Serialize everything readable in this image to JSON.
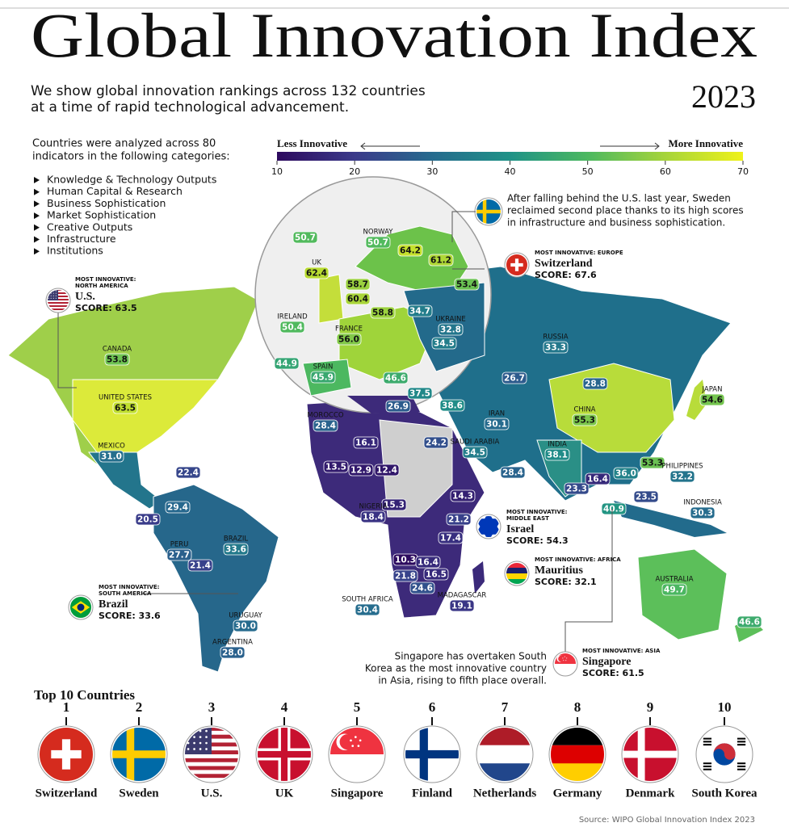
{
  "header": {
    "title": "Global Innovation Index",
    "year": "2023",
    "subtitle": [
      "We show global innovation rankings across 132 countries",
      "at a time of rapid technological advancement."
    ]
  },
  "intro": {
    "text": [
      "Countries were analyzed across 80",
      "indicators in the following categories:"
    ],
    "categories": [
      "Knowledge & Technology Outputs",
      "Human Capital & Research",
      "Business Sophistication",
      "Market Sophistication",
      "Creative Outputs",
      "Infrastructure",
      "Institutions"
    ]
  },
  "legend": {
    "low_label": "Less Innovative",
    "high_label": "More Innovative",
    "ticks": [
      10,
      20,
      30,
      40,
      50,
      60,
      70
    ],
    "colors": [
      "#2d0a5e",
      "#3b3a8a",
      "#266b8e",
      "#1f9287",
      "#4cb860",
      "#a6d43a",
      "#eff21a"
    ]
  },
  "map_labels": [
    {
      "name": "CANADA",
      "score": "53.8"
    },
    {
      "name": "UNITED STATES",
      "score": "63.5"
    },
    {
      "name": "MEXICO",
      "score": "31.0"
    },
    {
      "score": "22.4"
    },
    {
      "score": "20.5"
    },
    {
      "score": "29.4"
    },
    {
      "name": "PERU",
      "score": "27.7"
    },
    {
      "score": "21.4"
    },
    {
      "name": "BRAZIL",
      "score": "33.6"
    },
    {
      "name": "URUGUAY",
      "score": "30.0"
    },
    {
      "name": "ARGENTINA",
      "score": "28.0"
    },
    {
      "score": "50.7"
    },
    {
      "name": "NORWAY",
      "score": "50.7"
    },
    {
      "score": "64.2"
    },
    {
      "score": "61.2"
    },
    {
      "score": "53.4"
    },
    {
      "name": "UK",
      "score": "62.4"
    },
    {
      "score": "58.7"
    },
    {
      "score": "60.4"
    },
    {
      "score": "58.8"
    },
    {
      "name": "IRELAND",
      "score": "50.4"
    },
    {
      "name": "FRANCE",
      "score": "56.0"
    },
    {
      "score": "34.7"
    },
    {
      "name": "UKRAINE",
      "score": "32.8"
    },
    {
      "score": "34.5"
    },
    {
      "score": "44.9"
    },
    {
      "name": "SPAIN",
      "score": "45.9"
    },
    {
      "score": "46.6"
    },
    {
      "score": "37.5"
    },
    {
      "score": "26.9"
    },
    {
      "score": "38.6"
    },
    {
      "name": "RUSSIA",
      "score": "33.3"
    },
    {
      "score": "26.7"
    },
    {
      "score": "28.8"
    },
    {
      "name": "CHINA",
      "score": "55.3"
    },
    {
      "name": "JAPAN",
      "score": "54.6"
    },
    {
      "name": "MOROCCO",
      "score": "28.4"
    },
    {
      "name": "IRAN",
      "score": "30.1"
    },
    {
      "score": "24.2"
    },
    {
      "name": "SAUDI ARABIA",
      "score": "34.5"
    },
    {
      "name": "INDIA",
      "score": "38.1"
    },
    {
      "score": "16.1"
    },
    {
      "score": "13.5"
    },
    {
      "score": "12.9"
    },
    {
      "score": "12.4"
    },
    {
      "score": "28.4"
    },
    {
      "score": "14.3"
    },
    {
      "score": "53.3"
    },
    {
      "score": "36.0"
    },
    {
      "name": "PHILIPPINES",
      "score": "32.2"
    },
    {
      "score": "23.3"
    },
    {
      "score": "16.4"
    },
    {
      "score": "23.5"
    },
    {
      "score": "15.3"
    },
    {
      "name": "NIGERIA",
      "score": "18.4"
    },
    {
      "score": "21.2"
    },
    {
      "score": "40.9"
    },
    {
      "name": "INDONESIA",
      "score": "30.3"
    },
    {
      "score": "17.4"
    },
    {
      "score": "10.3"
    },
    {
      "score": "16.4"
    },
    {
      "score": "16.5"
    },
    {
      "score": "21.8"
    },
    {
      "score": "24.6"
    },
    {
      "name": "SOUTH AFRICA",
      "score": "30.4"
    },
    {
      "name": "MADAGASCAR",
      "score": "19.1"
    },
    {
      "name": "AUSTRALIA",
      "score": "49.7"
    },
    {
      "score": "46.6"
    }
  ],
  "callouts": [
    {
      "kicker": [
        "MOST INNOVATIVE:",
        "NORTH AMERICA"
      ],
      "country": "U.S.",
      "score": "SCORE: 63.5"
    },
    {
      "kicker": [
        "MOST INNOVATIVE: EUROPE"
      ],
      "country": "Switzerland",
      "score": "SCORE: 67.6"
    },
    {
      "kicker": [
        "MOST INNOVATIVE:",
        "SOUTH AMERICA"
      ],
      "country": "Brazil",
      "score": "SCORE: 33.6"
    },
    {
      "kicker": [
        "MOST INNOVATIVE:",
        "MIDDLE EAST"
      ],
      "country": "Israel",
      "score": "SCORE: 54.3"
    },
    {
      "kicker": [
        "MOST INNOVATIVE: AFRICA"
      ],
      "country": "Mauritius",
      "score": "SCORE: 32.1"
    },
    {
      "kicker": [
        "MOST INNOVATIVE: ASIA"
      ],
      "country": "Singapore",
      "score": "SCORE: 61.5"
    }
  ],
  "notes": [
    [
      "After falling behind the U.S. last year, Sweden",
      "reclaimed second place thanks to its high scores",
      "in infrastructure and business sophistication."
    ],
    [
      "Singapore has overtaken South",
      "Korea as the most innovative country",
      "in Asia, rising to fifth place overall."
    ]
  ],
  "top10": {
    "title": "Top 10 Countries",
    "ranks": [
      1,
      2,
      3,
      4,
      5,
      6,
      7,
      8,
      9,
      10
    ],
    "countries": [
      "Switzerland",
      "Sweden",
      "U.S.",
      "UK",
      "Singapore",
      "Finland",
      "Netherlands",
      "Germany",
      "Denmark",
      "South Korea"
    ]
  },
  "source": "Source: WIPO Global Innovation Index 2023"
}
